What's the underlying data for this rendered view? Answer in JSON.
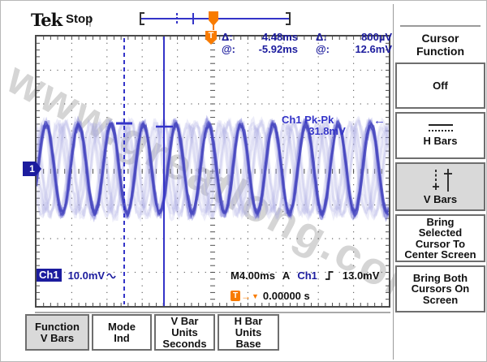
{
  "header": {
    "logo": "Tek",
    "status": "Stop"
  },
  "cursor_readout": {
    "t_icon": "T",
    "delta_label": "Δ:",
    "at_label": "@:",
    "delta_time": "4.48ms",
    "delta_volt": "800µV",
    "at_time": "-5.92ms",
    "at_volt": "12.6mV"
  },
  "measurement": {
    "label": "Ch1 Pk-Pk",
    "value": "31.8mV",
    "arrow": "←"
  },
  "channel_marker": "1",
  "bottom_readout": {
    "ch_label": "Ch1",
    "ch_scale": "10.0mV",
    "timebase": "M4.00ms",
    "acq_mode": "A",
    "trig_source": "Ch1",
    "trig_level": "13.0mV",
    "trig_pos_icon": "T",
    "trig_pos_arrow": "→",
    "trig_pos_marker": "▼",
    "trig_pos_value": "0.00000 s"
  },
  "side_menu": {
    "title_line1": "Cursor",
    "title_line2": "Function",
    "buttons": {
      "off": {
        "label": "Off",
        "selected": false
      },
      "hbars": {
        "label": "H Bars",
        "selected": false
      },
      "vbars": {
        "label": "V Bars",
        "selected": true
      },
      "bring_selected": {
        "lines": [
          "Bring",
          "Selected",
          "Cursor To",
          "Center Screen"
        ],
        "selected": false
      },
      "bring_both": {
        "lines": [
          "Bring Both",
          "Cursors On",
          "Screen"
        ],
        "selected": false
      }
    }
  },
  "bottom_menu": {
    "function": {
      "lines": [
        "Function",
        "V Bars"
      ],
      "selected": true
    },
    "mode": {
      "lines": [
        "Mode",
        "Ind"
      ],
      "selected": false
    },
    "vbar_units": {
      "lines": [
        "V Bar",
        "Units",
        "Seconds"
      ],
      "selected": false
    },
    "hbar_units": {
      "lines": [
        "H Bar",
        "Units",
        "Base"
      ],
      "selected": false
    }
  },
  "watermark": "www.greatlong.com",
  "colors": {
    "navy": "#1c1c9e",
    "annotation_blue": "#3434c8",
    "trace_core": "#4a4ac0",
    "trace_fuzz": "#7070d6",
    "trace_ghost": "#a6a6e0",
    "orange": "#f87b00",
    "selected_bg": "#d9d9d9",
    "grid": "#666666",
    "watermark_gray": "#bebebe"
  }
}
